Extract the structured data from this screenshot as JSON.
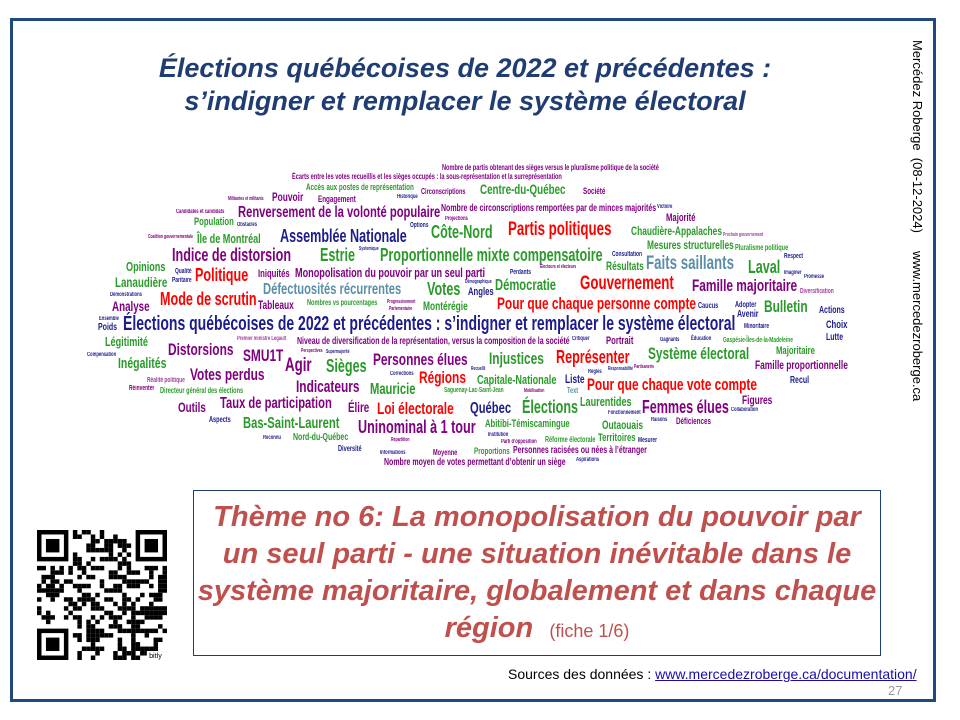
{
  "title": {
    "line1": "Élections québécoises de 2022 et précédentes :",
    "line2": "s’indigner et remplacer le système électoral"
  },
  "side_text": "Mercédez Roberge  (08-12-2024)     www.mercedezroberge.ca",
  "colors": {
    "frame": "#1f497d",
    "title": "#1f3d73",
    "theme": "#c0504d",
    "green": "#2a9a2a",
    "purple": "#800080",
    "navy": "#1c1c8c",
    "red": "#ff0000",
    "steel": "#5b8fa8",
    "magenta": "#a040a0"
  },
  "word_cloud": [
    {
      "text": "Historique",
      "color": "navy"
    },
    {
      "text": "Circonscriptions",
      "color": "purple"
    },
    {
      "text": "Centre-du-Québec",
      "color": "green"
    },
    {
      "text": "Société",
      "color": "purple"
    },
    {
      "text": "Engagement",
      "color": "purple"
    },
    {
      "text": "Nombre de circonscriptions remportées par de minces majorités",
      "color": "purple"
    },
    {
      "text": "Victoire",
      "color": "navy"
    },
    {
      "text": "Obstacles",
      "color": "navy"
    },
    {
      "text": "Pouvoir",
      "color": "purple"
    },
    {
      "text": "Écarts entre les votes recueillis et les sièges occupés : la sous-représentation et la surreprésentation",
      "color": "purple"
    },
    {
      "text": "Majorité",
      "color": "purple"
    },
    {
      "text": "Population",
      "color": "green"
    },
    {
      "text": "Accès aux postes de représentation",
      "color": "green"
    },
    {
      "text": "Options",
      "color": "navy"
    },
    {
      "text": "Côte-Nord",
      "color": "green"
    },
    {
      "text": "Partis politiques",
      "color": "red"
    },
    {
      "text": "Chaudière-Appalaches",
      "color": "green"
    },
    {
      "text": "Île de Montréal",
      "color": "green"
    },
    {
      "text": "Assemblée Nationale",
      "color": "navy"
    },
    {
      "text": "Candidates et candidats",
      "color": "purple"
    },
    {
      "text": "Systemique",
      "color": "navy"
    },
    {
      "text": "Projections",
      "color": "purple"
    },
    {
      "text": "Nombre de partis obtenant des sièges versus le pluralisme politique de la société",
      "color": "purple"
    },
    {
      "text": "Indice de distorsion",
      "color": "purple"
    },
    {
      "text": "Estrie",
      "color": "green"
    },
    {
      "text": "Proportionnelle mixte compensatoire",
      "color": "green"
    },
    {
      "text": "Consultation",
      "color": "navy"
    },
    {
      "text": "Pluralisme politique",
      "color": "green"
    },
    {
      "text": "Respect",
      "color": "navy"
    },
    {
      "text": "Opinions",
      "color": "green"
    },
    {
      "text": "Qualité",
      "color": "navy"
    },
    {
      "text": "Coalition gouvernementale",
      "color": "purple"
    },
    {
      "text": "Militantes et militants",
      "color": "purple"
    },
    {
      "text": "Électeurs et électeurs",
      "color": "purple"
    },
    {
      "text": "Faits saillants",
      "color": "steel"
    },
    {
      "text": "Laval",
      "color": "green"
    },
    {
      "text": "Imaginer",
      "color": "navy"
    },
    {
      "text": "Politique",
      "color": "red"
    },
    {
      "text": "Iniquités",
      "color": "purple"
    },
    {
      "text": "Monopolisation du pouvoir par un seul parti",
      "color": "purple"
    },
    {
      "text": "Montérégie",
      "color": "green"
    },
    {
      "text": "Résultats",
      "color": "green"
    },
    {
      "text": "Prochain gouvernement",
      "color": "magenta"
    },
    {
      "text": "Promesse",
      "color": "navy"
    },
    {
      "text": "Lanaudière",
      "color": "green"
    },
    {
      "text": "Tableaux",
      "color": "purple"
    },
    {
      "text": "Paritaire",
      "color": "navy"
    },
    {
      "text": "Défectuosités récurrentes",
      "color": "steel"
    },
    {
      "text": "Progressivement",
      "color": "purple"
    },
    {
      "text": "Perdants",
      "color": "navy"
    },
    {
      "text": "Gouvernement",
      "color": "red"
    },
    {
      "text": "Famille majoritaire",
      "color": "purple"
    },
    {
      "text": "Démonstrations",
      "color": "navy"
    },
    {
      "text": "Votes",
      "color": "green"
    },
    {
      "text": "Angles",
      "color": "navy"
    },
    {
      "text": "Démocratie",
      "color": "green"
    },
    {
      "text": "Analyse",
      "color": "purple"
    },
    {
      "text": "Mode de scrutin",
      "color": "red"
    },
    {
      "text": "Mesures structurelles",
      "color": "green"
    },
    {
      "text": "Minoritaire",
      "color": "navy"
    },
    {
      "text": "Diversification",
      "color": "magenta"
    },
    {
      "text": "Adopter",
      "color": "navy"
    },
    {
      "text": "Ensemble",
      "color": "navy"
    },
    {
      "text": "Nombres vs pourcentages",
      "color": "green"
    },
    {
      "text": "Renversement de la volonté populaire",
      "color": "purple"
    },
    {
      "text": "Pour que chaque personne compte",
      "color": "red"
    },
    {
      "text": "Bulletin",
      "color": "green"
    },
    {
      "text": "Actions",
      "color": "navy"
    },
    {
      "text": "Avenir",
      "color": "navy"
    },
    {
      "text": "Perspectives",
      "color": "purple"
    },
    {
      "text": "Parlementaire",
      "color": "purple"
    },
    {
      "text": "Démographique",
      "color": "navy"
    },
    {
      "text": "Responsabilité",
      "color": "navy"
    },
    {
      "text": "Critiquer",
      "color": "navy"
    },
    {
      "text": "Partisanerie",
      "color": "purple"
    },
    {
      "text": "Caucus",
      "color": "navy"
    },
    {
      "text": "Éducation",
      "color": "navy"
    },
    {
      "text": "Poids",
      "color": "navy"
    },
    {
      "text": "Élections québécoises de 2022 et précédentes : s’indigner et remplacer le système électoral",
      "color": "navy"
    },
    {
      "text": "Choix",
      "color": "navy"
    },
    {
      "text": "Lutte",
      "color": "navy"
    },
    {
      "text": "Légitimité",
      "color": "green"
    },
    {
      "text": "Premier ministre Legault",
      "color": "magenta"
    },
    {
      "text": "Niveau de diversification de la représentation, versus la composition de la société",
      "color": "purple"
    },
    {
      "text": "Mobilisation",
      "color": "purple"
    },
    {
      "text": "Portrait",
      "color": "purple"
    },
    {
      "text": "Gagnants",
      "color": "navy"
    },
    {
      "text": "Gaspésie-Îles-de-la-Madeleine",
      "color": "green"
    },
    {
      "text": "Compensation",
      "color": "navy"
    },
    {
      "text": "Distorsions",
      "color": "purple"
    },
    {
      "text": "SMU1T",
      "color": "purple"
    },
    {
      "text": "Saguenay-Lac-Saint-Jean",
      "color": "green"
    },
    {
      "text": "Corrections",
      "color": "navy"
    },
    {
      "text": "Système électoral",
      "color": "green"
    },
    {
      "text": "Majoritaire",
      "color": "green"
    },
    {
      "text": "Inégalités",
      "color": "green"
    },
    {
      "text": "Réalité politique",
      "color": "magenta"
    },
    {
      "text": "Personnes élues",
      "color": "purple"
    },
    {
      "text": "Injustices",
      "color": "green"
    },
    {
      "text": "Représenter",
      "color": "red"
    },
    {
      "text": "Agir",
      "color": "purple"
    },
    {
      "text": "Sièges",
      "color": "green"
    },
    {
      "text": "Votes perdus",
      "color": "purple"
    },
    {
      "text": "Réinventer",
      "color": "purple"
    },
    {
      "text": "Supermajorité",
      "color": "navy"
    },
    {
      "text": "Élire",
      "color": "purple"
    },
    {
      "text": "Régions",
      "color": "red"
    },
    {
      "text": "Recueilli",
      "color": "navy"
    },
    {
      "text": "Règles",
      "color": "navy"
    },
    {
      "text": "Outaouais",
      "color": "green"
    },
    {
      "text": "Liste",
      "color": "navy"
    },
    {
      "text": "Famille proportionnelle",
      "color": "purple"
    },
    {
      "text": "Capitale-Nationale",
      "color": "green"
    },
    {
      "text": "Recul",
      "color": "navy"
    },
    {
      "text": "Directeur général des élections",
      "color": "green"
    },
    {
      "text": "Indicateurs",
      "color": "purple"
    },
    {
      "text": "Mauricie",
      "color": "green"
    },
    {
      "text": "Abitibi-Témiscamingue",
      "color": "green"
    },
    {
      "text": "Text",
      "color": "steel"
    },
    {
      "text": "Pour que chaque vote compte",
      "color": "red"
    },
    {
      "text": "Outils",
      "color": "purple"
    },
    {
      "text": "Taux de participation",
      "color": "purple"
    },
    {
      "text": "Loi électorale",
      "color": "red"
    },
    {
      "text": "Québec",
      "color": "navy"
    },
    {
      "text": "Élections",
      "color": "green"
    },
    {
      "text": "Laurentides",
      "color": "green"
    },
    {
      "text": "Territoires",
      "color": "green"
    },
    {
      "text": "Fonctionnement",
      "color": "navy"
    },
    {
      "text": "Collaboration",
      "color": "navy"
    },
    {
      "text": "Figures",
      "color": "purple"
    },
    {
      "text": "Femmes élues",
      "color": "purple"
    },
    {
      "text": "Aspects",
      "color": "navy"
    },
    {
      "text": "Raisons",
      "color": "navy"
    },
    {
      "text": "Déficiences",
      "color": "purple"
    },
    {
      "text": "Bas-Saint-Laurent",
      "color": "green"
    },
    {
      "text": "Institution",
      "color": "navy"
    },
    {
      "text": "Répartition",
      "color": "purple"
    },
    {
      "text": "Uninominal à 1 tour",
      "color": "purple"
    },
    {
      "text": "Personnes racisées ou nées à l’étranger",
      "color": "purple"
    },
    {
      "text": "Réforme électorale",
      "color": "green"
    },
    {
      "text": "Parti d’opposition",
      "color": "purple"
    },
    {
      "text": "Reconnu",
      "color": "navy"
    },
    {
      "text": "Nord-du-Québec",
      "color": "green"
    },
    {
      "text": "Nombre moyen de votes permettant d’obtenir un siège",
      "color": "purple"
    },
    {
      "text": "Mesurer",
      "color": "navy"
    },
    {
      "text": "Diversité",
      "color": "navy"
    },
    {
      "text": "Informations",
      "color": "navy"
    },
    {
      "text": "Moyenne",
      "color": "purple"
    },
    {
      "text": "Proportions",
      "color": "green"
    },
    {
      "text": "Aspirations",
      "color": "navy"
    }
  ],
  "theme": {
    "line1": "Thème no 6: La monopolisation du pouvoir par",
    "line2": "un seul parti - une situation inévitable dans le",
    "line3": "système majoritaire, globalement et dans chaque",
    "line4": "région",
    "fiche": "(fiche 1/6)"
  },
  "sources": {
    "label": "Sources des données : ",
    "link": "www.mercedezroberge.ca/documentation/"
  },
  "page_number": "27",
  "qr_code": {
    "label": "bitly"
  }
}
